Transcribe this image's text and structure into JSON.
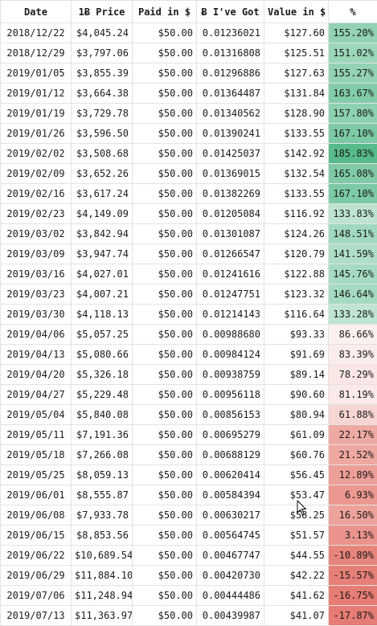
{
  "headers": {
    "date": "Date",
    "price": "1Ƀ Price",
    "paid": "Paid in $",
    "got": "Ƀ I've Got",
    "value": "Value in $",
    "pct": "%"
  },
  "rows": [
    {
      "date": "2018/12/22",
      "price": "$4,045.24",
      "paid": "$50.00",
      "got": "0.01236021",
      "value": "$127.60",
      "pct": "155.20%"
    },
    {
      "date": "2018/12/29",
      "price": "$3,797.06",
      "paid": "$50.00",
      "got": "0.01316808",
      "value": "$125.51",
      "pct": "151.02%"
    },
    {
      "date": "2019/01/05",
      "price": "$3,855.39",
      "paid": "$50.00",
      "got": "0.01296886",
      "value": "$127.63",
      "pct": "155.27%"
    },
    {
      "date": "2019/01/12",
      "price": "$3,664.38",
      "paid": "$50.00",
      "got": "0.01364487",
      "value": "$131.84",
      "pct": "163.67%"
    },
    {
      "date": "2019/01/19",
      "price": "$3,729.78",
      "paid": "$50.00",
      "got": "0.01340562",
      "value": "$128.90",
      "pct": "157.80%"
    },
    {
      "date": "2019/01/26",
      "price": "$3,596.50",
      "paid": "$50.00",
      "got": "0.01390241",
      "value": "$133.55",
      "pct": "167.10%"
    },
    {
      "date": "2019/02/02",
      "price": "$3,508.68",
      "paid": "$50.00",
      "got": "0.01425037",
      "value": "$142.92",
      "pct": "185.83%"
    },
    {
      "date": "2019/02/09",
      "price": "$3,652.26",
      "paid": "$50.00",
      "got": "0.01369015",
      "value": "$132.54",
      "pct": "165.08%"
    },
    {
      "date": "2019/02/16",
      "price": "$3,617.24",
      "paid": "$50.00",
      "got": "0.01382269",
      "value": "$133.55",
      "pct": "167.10%"
    },
    {
      "date": "2019/02/23",
      "price": "$4,149.09",
      "paid": "$50.00",
      "got": "0.01205084",
      "value": "$116.92",
      "pct": "133.83%"
    },
    {
      "date": "2019/03/02",
      "price": "$3,842.94",
      "paid": "$50.00",
      "got": "0.01301087",
      "value": "$124.26",
      "pct": "148.51%"
    },
    {
      "date": "2019/03/09",
      "price": "$3,947.74",
      "paid": "$50.00",
      "got": "0.01266547",
      "value": "$120.79",
      "pct": "141.59%"
    },
    {
      "date": "2019/03/16",
      "price": "$4,027.01",
      "paid": "$50.00",
      "got": "0.01241616",
      "value": "$122.88",
      "pct": "145.76%"
    },
    {
      "date": "2019/03/23",
      "price": "$4,007.21",
      "paid": "$50.00",
      "got": "0.01247751",
      "value": "$123.32",
      "pct": "146.64%"
    },
    {
      "date": "2019/03/30",
      "price": "$4,118.13",
      "paid": "$50.00",
      "got": "0.01214143",
      "value": "$116.64",
      "pct": "133.28%"
    },
    {
      "date": "2019/04/06",
      "price": "$5,057.25",
      "paid": "$50.00",
      "got": "0.00988680",
      "value": "$93.33",
      "pct": "86.66%"
    },
    {
      "date": "2019/04/13",
      "price": "$5,080.66",
      "paid": "$50.00",
      "got": "0.00984124",
      "value": "$91.69",
      "pct": "83.39%"
    },
    {
      "date": "2019/04/20",
      "price": "$5,326.18",
      "paid": "$50.00",
      "got": "0.00938759",
      "value": "$89.14",
      "pct": "78.29%"
    },
    {
      "date": "2019/04/27",
      "price": "$5,229.48",
      "paid": "$50.00",
      "got": "0.00956118",
      "value": "$90.60",
      "pct": "81.19%"
    },
    {
      "date": "2019/05/04",
      "price": "$5,840.08",
      "paid": "$50.00",
      "got": "0.00856153",
      "value": "$80.94",
      "pct": "61.88%"
    },
    {
      "date": "2019/05/11",
      "price": "$7,191.36",
      "paid": "$50.00",
      "got": "0.00695279",
      "value": "$61.09",
      "pct": "22.17%"
    },
    {
      "date": "2019/05/18",
      "price": "$7,266.08",
      "paid": "$50.00",
      "got": "0.00688129",
      "value": "$60.76",
      "pct": "21.52%"
    },
    {
      "date": "2019/05/25",
      "price": "$8,059.13",
      "paid": "$50.00",
      "got": "0.00620414",
      "value": "$56.45",
      "pct": "12.89%"
    },
    {
      "date": "2019/06/01",
      "price": "$8,555.87",
      "paid": "$50.00",
      "got": "0.00584394",
      "value": "$53.47",
      "pct": "6.93%"
    },
    {
      "date": "2019/06/08",
      "price": "$7,933.78",
      "paid": "$50.00",
      "got": "0.00630217",
      "value": "$58.25",
      "pct": "16.50%"
    },
    {
      "date": "2019/06/15",
      "price": "$8,853.56",
      "paid": "$50.00",
      "got": "0.00564745",
      "value": "$51.57",
      "pct": "3.13%"
    },
    {
      "date": "2019/06/22",
      "price": "$10,689.54",
      "paid": "$50.00",
      "got": "0.00467747",
      "value": "$44.55",
      "pct": "-10.89%"
    },
    {
      "date": "2019/06/29",
      "price": "$11,884.10",
      "paid": "$50.00",
      "got": "0.00420730",
      "value": "$42.22",
      "pct": "-15.57%"
    },
    {
      "date": "2019/07/06",
      "price": "$11,248.94",
      "paid": "$50.00",
      "got": "0.00444486",
      "value": "$41.62",
      "pct": "-16.75%"
    },
    {
      "date": "2019/07/13",
      "price": "$11,363.97",
      "paid": "$50.00",
      "got": "0.00439987",
      "value": "$41.07",
      "pct": "-17.87%"
    }
  ],
  "colors": {
    "positive_max": "#57bb8a",
    "negative_max": "#e67c73",
    "midpoint": "#ffffff",
    "grid_line": "#e3e3e3",
    "text": "#1a1a1a"
  },
  "cursor_icon": "mouse-pointer-icon"
}
